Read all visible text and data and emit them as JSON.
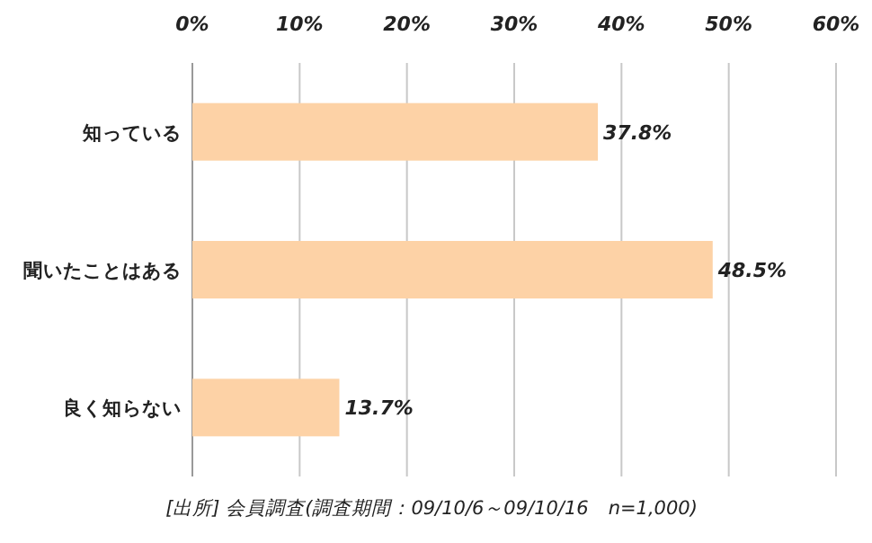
{
  "chart_data": {
    "type": "bar",
    "orientation": "horizontal",
    "categories": [
      "知っている",
      "聞いたことはある",
      "良く知らない"
    ],
    "values": [
      37.8,
      48.5,
      13.7
    ],
    "value_labels": [
      "37.8%",
      "48.5%",
      "13.7%"
    ],
    "color": "#fdd2a6",
    "xlim": [
      0,
      60
    ],
    "xticks": [
      {
        "value": 0,
        "label": "0%"
      },
      {
        "value": 10,
        "label": "10%"
      },
      {
        "value": 20,
        "label": "20%"
      },
      {
        "value": 30,
        "label": "30%"
      },
      {
        "value": 40,
        "label": "40%"
      },
      {
        "value": 50,
        "label": "50%"
      },
      {
        "value": 60,
        "label": "60%"
      }
    ],
    "grid": "x",
    "annotations": [
      "[出所] 会員調査(調査期間：09/10/6～09/10/16　n=1,000)"
    ]
  }
}
